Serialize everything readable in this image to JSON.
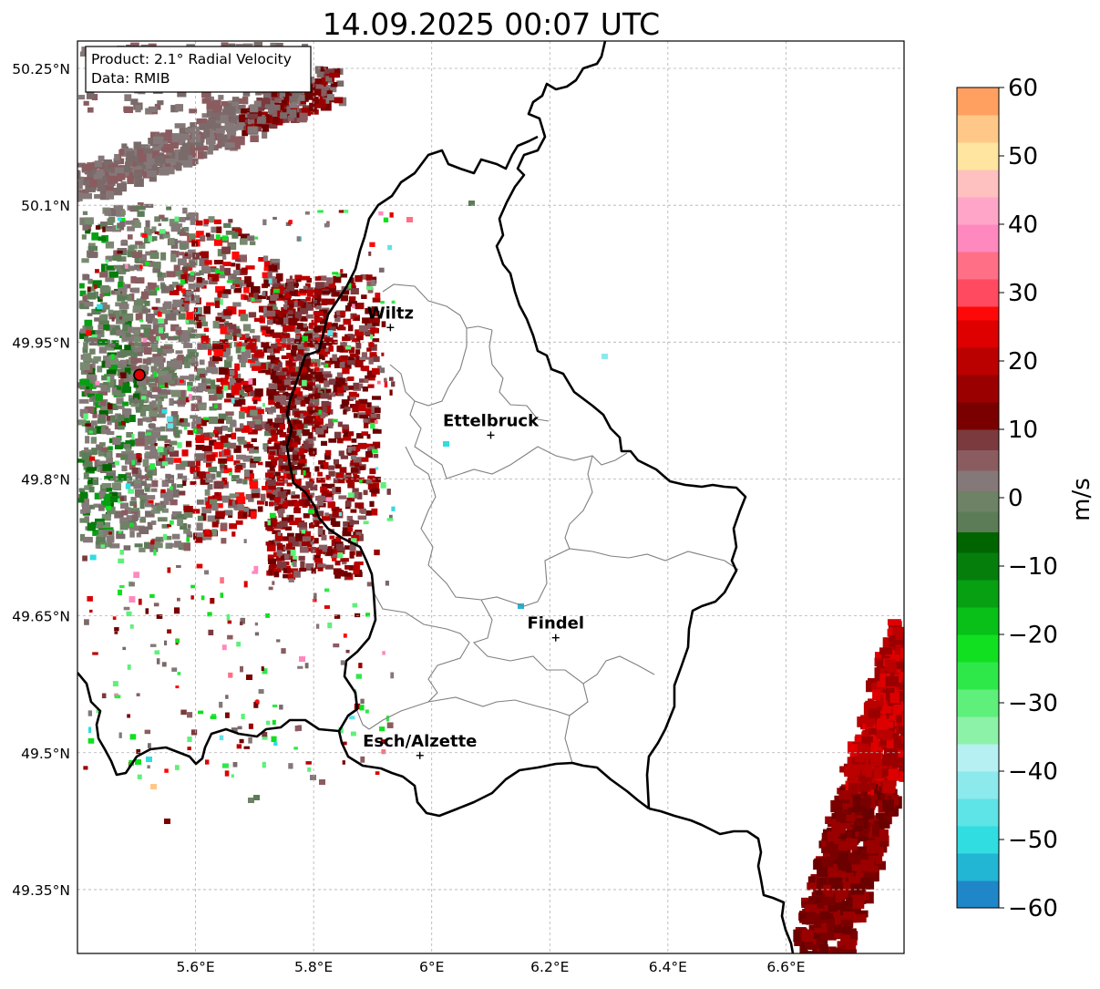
{
  "title": "14.09.2025 00:07 UTC",
  "info_box": {
    "product": "Product: 2.1° Radial Velocity",
    "data": "Data: RMIB"
  },
  "map": {
    "lon_range": [
      5.4,
      6.8
    ],
    "lat_range": [
      49.28,
      50.28
    ],
    "x_ticks": [
      {
        "value": 5.6,
        "label": "5.6°E"
      },
      {
        "value": 5.8,
        "label": "5.8°E"
      },
      {
        "value": 6.0,
        "label": "6°E"
      },
      {
        "value": 6.2,
        "label": "6.2°E"
      },
      {
        "value": 6.4,
        "label": "6.4°E"
      },
      {
        "value": 6.6,
        "label": "6.6°E"
      }
    ],
    "y_ticks": [
      {
        "value": 50.25,
        "label": "50.25°N"
      },
      {
        "value": 50.1,
        "label": "50.1°N"
      },
      {
        "value": 49.95,
        "label": "49.95°N"
      },
      {
        "value": 49.8,
        "label": "49.8°N"
      },
      {
        "value": 49.65,
        "label": "49.65°N"
      },
      {
        "value": 49.5,
        "label": "49.5°N"
      },
      {
        "value": 49.35,
        "label": "49.35°N"
      }
    ],
    "radar_site": {
      "lon": 5.505,
      "lat": 49.914
    },
    "cities": [
      {
        "name": "Wiltz",
        "lon": 5.93,
        "lat": 49.966
      },
      {
        "name": "Ettelbruck",
        "lon": 6.1,
        "lat": 49.848
      },
      {
        "name": "Findel",
        "lon": 6.21,
        "lat": 49.626
      },
      {
        "name": "Esch/Alzette",
        "lon": 5.98,
        "lat": 49.497
      }
    ]
  },
  "colorbar": {
    "label": "m/s",
    "ticks": [
      {
        "value": 60,
        "label": "60"
      },
      {
        "value": 50,
        "label": "50"
      },
      {
        "value": 40,
        "label": "40"
      },
      {
        "value": 30,
        "label": "30"
      },
      {
        "value": 20,
        "label": "20"
      },
      {
        "value": 10,
        "label": "10"
      },
      {
        "value": 0,
        "label": "0"
      },
      {
        "value": -10,
        "label": "−10"
      },
      {
        "value": -20,
        "label": "−20"
      },
      {
        "value": -30,
        "label": "−30"
      },
      {
        "value": -40,
        "label": "−40"
      },
      {
        "value": -50,
        "label": "−50"
      },
      {
        "value": -60,
        "label": "−60"
      }
    ],
    "range": [
      -60,
      60
    ],
    "stops": [
      {
        "from": -60,
        "to": -56,
        "color": "#1f86c8"
      },
      {
        "from": -56,
        "to": -52,
        "color": "#22b5d4"
      },
      {
        "from": -52,
        "to": -48,
        "color": "#30dde0"
      },
      {
        "from": -48,
        "to": -44,
        "color": "#5ee3e6"
      },
      {
        "from": -44,
        "to": -40,
        "color": "#8ce9ec"
      },
      {
        "from": -40,
        "to": -36,
        "color": "#b6f0f2"
      },
      {
        "from": -36,
        "to": -32,
        "color": "#8cf2a8"
      },
      {
        "from": -32,
        "to": -28,
        "color": "#5ef07a"
      },
      {
        "from": -28,
        "to": -24,
        "color": "#2ee84a"
      },
      {
        "from": -24,
        "to": -20,
        "color": "#10e020"
      },
      {
        "from": -20,
        "to": -16,
        "color": "#08c018"
      },
      {
        "from": -16,
        "to": -12,
        "color": "#06a012"
      },
      {
        "from": -12,
        "to": -8,
        "color": "#057e0c"
      },
      {
        "from": -8,
        "to": -5,
        "color": "#006400"
      },
      {
        "from": -5,
        "to": -2,
        "color": "#5c7c57"
      },
      {
        "from": -2,
        "to": 1,
        "color": "#6e8266"
      },
      {
        "from": 1,
        "to": 4,
        "color": "#857878"
      },
      {
        "from": 4,
        "to": 7,
        "color": "#8a5c60"
      },
      {
        "from": 7,
        "to": 10,
        "color": "#7a3a3e"
      },
      {
        "from": 10,
        "to": 14,
        "color": "#7a0000"
      },
      {
        "from": 14,
        "to": 18,
        "color": "#9a0000"
      },
      {
        "from": 18,
        "to": 22,
        "color": "#bb0000"
      },
      {
        "from": 22,
        "to": 26,
        "color": "#de0000"
      },
      {
        "from": 26,
        "to": 28,
        "color": "#ff0808"
      },
      {
        "from": 28,
        "to": 32,
        "color": "#ff4a60"
      },
      {
        "from": 32,
        "to": 36,
        "color": "#ff6f85"
      },
      {
        "from": 36,
        "to": 40,
        "color": "#ff88bf"
      },
      {
        "from": 40,
        "to": 44,
        "color": "#ffa6c8"
      },
      {
        "from": 44,
        "to": 48,
        "color": "#ffc0c0"
      },
      {
        "from": 48,
        "to": 52,
        "color": "#ffe5a0"
      },
      {
        "from": 52,
        "to": 56,
        "color": "#ffc888"
      },
      {
        "from": 56,
        "to": 60,
        "color": "#ffa060"
      }
    ]
  },
  "colors": {
    "border": "#000000",
    "canton": "#808080",
    "grid": "#b0b0b0",
    "radar_dot": "#e00000"
  }
}
